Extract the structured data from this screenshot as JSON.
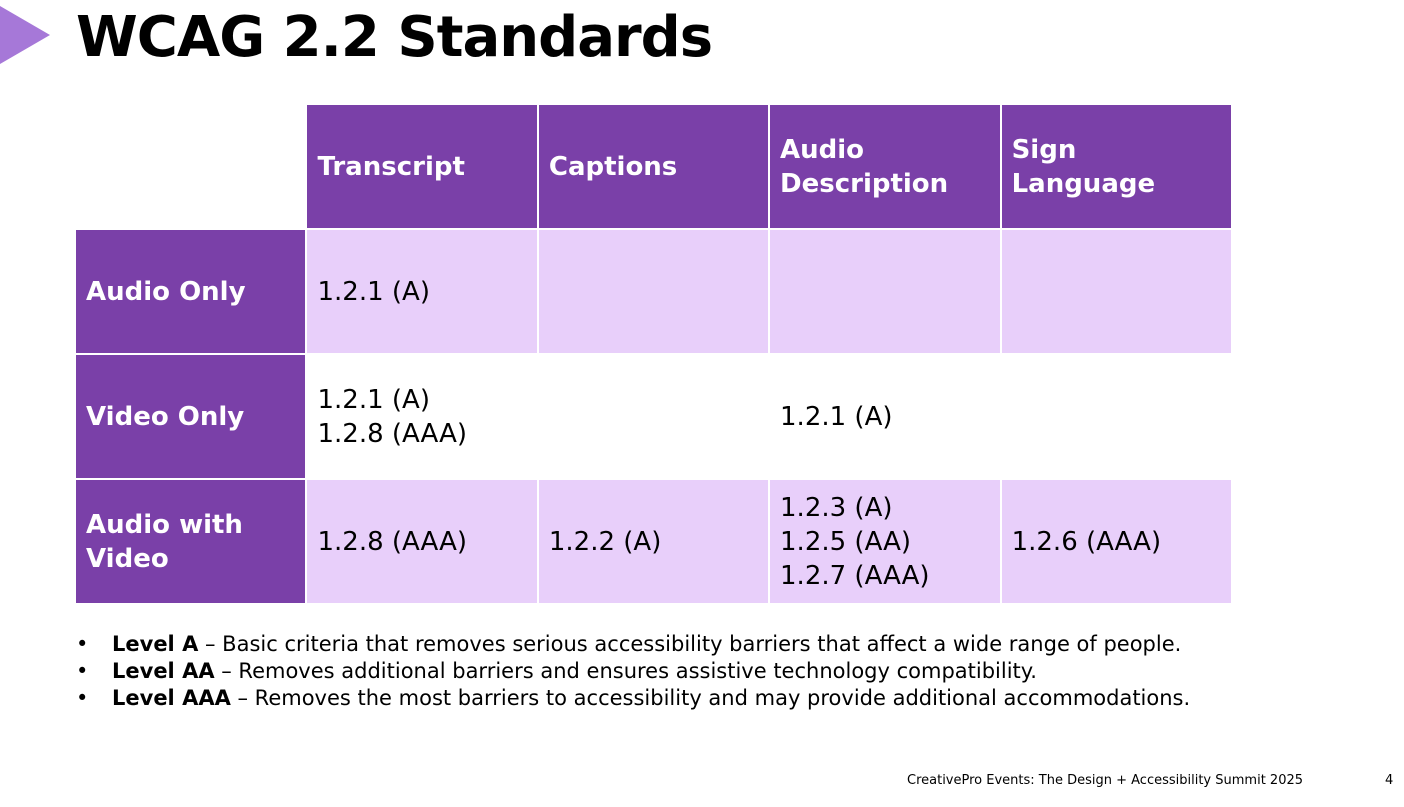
{
  "slide": {
    "title": "WCAG 2.2 Standards",
    "accent_color": "#a678d8",
    "footer": "CreativePro Events: The Design + Accessibility Summit 2025",
    "page_number": "4"
  },
  "table": {
    "header_color": "#7a40a8",
    "shaded_color": "#e8cffa",
    "columns": [
      {
        "line1": "Transcript",
        "line2": ""
      },
      {
        "line1": "Captions",
        "line2": ""
      },
      {
        "line1": "Audio",
        "line2": "Description"
      },
      {
        "line1": "Sign",
        "line2": "Language"
      }
    ],
    "rows": [
      {
        "label_line1": "Audio Only",
        "label_line2": "",
        "cells": [
          [
            "1.2.1 (A)"
          ],
          [],
          [],
          []
        ]
      },
      {
        "label_line1": "Video Only",
        "label_line2": "",
        "cells": [
          [
            "1.2.1 (A)",
            "1.2.8 (AAA)"
          ],
          [],
          [
            "1.2.1 (A)"
          ],
          []
        ]
      },
      {
        "label_line1": "Audio with",
        "label_line2": "Video",
        "cells": [
          [
            "1.2.8 (AAA)"
          ],
          [
            "1.2.2 (A)"
          ],
          [
            "1.2.3 (A)",
            "1.2.5 (AA)",
            "1.2.7 (AAA)"
          ],
          [
            "1.2.6 (AAA)"
          ]
        ]
      }
    ]
  },
  "bullets": [
    {
      "term": "Level A",
      "text": " – Basic criteria that removes serious accessibility barriers that affect a wide range of people."
    },
    {
      "term": "Level AA",
      "text": " – Removes additional barriers and ensures assistive technology compatibility."
    },
    {
      "term": "Level AAA",
      "text": " – Removes the most barriers to accessibility and may provide additional accommodations."
    }
  ],
  "bullet_symbol": "•"
}
